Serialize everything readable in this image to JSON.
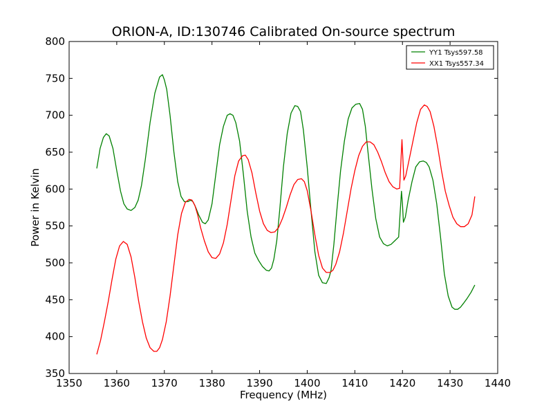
{
  "chart_data": {
    "type": "line",
    "title": "ORION-A, ID:130746 Calibrated On-source spectrum",
    "xlabel": "Frequency (MHz)",
    "ylabel": "Power in Kelvin",
    "xlim": [
      1350,
      1440
    ],
    "ylim": [
      350,
      800
    ],
    "xticks": [
      1350,
      1360,
      1370,
      1380,
      1390,
      1400,
      1410,
      1420,
      1430,
      1440
    ],
    "yticks": [
      350,
      400,
      450,
      500,
      550,
      600,
      650,
      700,
      750,
      800
    ],
    "grid": false,
    "legend_position": "top-right",
    "series": [
      {
        "name": "YY1 Tsys597.58",
        "color": "#008000",
        "x": [
          1355.8,
          1356.5,
          1357.2,
          1357.8,
          1358.4,
          1359.2,
          1360.0,
          1360.8,
          1361.5,
          1362.2,
          1363.0,
          1363.8,
          1364.5,
          1365.2,
          1366.0,
          1367.0,
          1368.0,
          1369.0,
          1369.6,
          1370.0,
          1370.5,
          1371.2,
          1372.0,
          1372.8,
          1373.5,
          1374.2,
          1375.0,
          1375.5,
          1376.0,
          1376.6,
          1377.2,
          1378.0,
          1378.6,
          1379.2,
          1380.0,
          1380.8,
          1381.6,
          1382.4,
          1383.2,
          1383.8,
          1384.4,
          1385.0,
          1385.8,
          1386.6,
          1387.4,
          1388.2,
          1389.0,
          1389.8,
          1390.6,
          1391.4,
          1392.0,
          1392.5,
          1393.0,
          1393.6,
          1394.2,
          1395.0,
          1395.8,
          1396.6,
          1397.4,
          1398.0,
          1398.6,
          1399.2,
          1400.0,
          1400.8,
          1401.6,
          1402.4,
          1403.2,
          1404.0,
          1404.6,
          1405.0,
          1405.6,
          1406.2,
          1407.0,
          1407.8,
          1408.6,
          1409.4,
          1410.2,
          1411.0,
          1411.6,
          1412.2,
          1412.8,
          1413.6,
          1414.4,
          1415.2,
          1416.0,
          1416.8,
          1417.6,
          1418.4,
          1419.2,
          1419.8,
          1420.0,
          1420.2,
          1420.6,
          1421.2,
          1422.0,
          1422.8,
          1423.6,
          1424.4,
          1425.0,
          1425.6,
          1426.4,
          1427.2,
          1428.0,
          1428.8,
          1429.6,
          1430.4,
          1431.0,
          1431.6,
          1432.2,
          1432.8,
          1433.6,
          1434.4,
          1435.2
        ],
        "y": [
          628,
          655,
          670,
          675,
          672,
          655,
          625,
          597,
          580,
          573,
          571,
          575,
          585,
          605,
          640,
          690,
          730,
          752,
          755,
          748,
          735,
          700,
          650,
          610,
          590,
          583,
          583,
          585,
          583,
          575,
          565,
          555,
          553,
          558,
          580,
          620,
          660,
          685,
          700,
          702,
          700,
          690,
          665,
          620,
          570,
          535,
          513,
          503,
          495,
          490,
          489,
          493,
          505,
          530,
          570,
          630,
          675,
          703,
          713,
          712,
          705,
          680,
          630,
          570,
          515,
          483,
          473,
          472,
          480,
          490,
          525,
          570,
          625,
          665,
          695,
          710,
          715,
          716,
          708,
          685,
          648,
          600,
          560,
          535,
          526,
          523,
          525,
          530,
          535,
          597,
          580,
          555,
          562,
          585,
          610,
          630,
          637,
          638,
          636,
          630,
          612,
          580,
          535,
          485,
          455,
          440,
          437,
          437,
          440,
          445,
          452,
          460,
          470
        ]
      },
      {
        "name": "XX1 Tsys557.34",
        "color": "#ff0000",
        "x": [
          1355.8,
          1356.6,
          1357.4,
          1358.2,
          1359.0,
          1359.8,
          1360.6,
          1361.4,
          1362.2,
          1363.0,
          1363.8,
          1364.6,
          1365.4,
          1366.2,
          1367.0,
          1367.8,
          1368.4,
          1369.0,
          1369.6,
          1370.4,
          1371.2,
          1372.0,
          1372.8,
          1373.6,
          1374.4,
          1375.2,
          1375.8,
          1376.4,
          1377.0,
          1377.6,
          1378.4,
          1379.2,
          1380.0,
          1380.8,
          1381.6,
          1382.4,
          1383.2,
          1384.0,
          1384.8,
          1385.6,
          1386.4,
          1387.0,
          1387.6,
          1388.4,
          1389.2,
          1390.0,
          1390.8,
          1391.6,
          1392.4,
          1393.2,
          1394.0,
          1394.8,
          1395.6,
          1396.4,
          1397.2,
          1398.0,
          1398.8,
          1399.4,
          1400.0,
          1400.8,
          1401.6,
          1402.4,
          1403.2,
          1404.0,
          1404.8,
          1405.4,
          1406.0,
          1406.8,
          1407.6,
          1408.4,
          1409.2,
          1410.0,
          1410.8,
          1411.6,
          1412.4,
          1413.2,
          1414.0,
          1414.8,
          1415.6,
          1416.4,
          1417.2,
          1418.0,
          1418.8,
          1419.4,
          1419.9,
          1420.1,
          1420.3,
          1420.7,
          1421.4,
          1422.2,
          1423.0,
          1423.8,
          1424.6,
          1425.2,
          1425.8,
          1426.6,
          1427.4,
          1428.2,
          1429.0,
          1429.8,
          1430.6,
          1431.4,
          1432.2,
          1433.0,
          1433.8,
          1434.6,
          1435.2
        ],
        "y": [
          376,
          395,
          420,
          447,
          477,
          505,
          523,
          529,
          525,
          508,
          480,
          448,
          420,
          398,
          385,
          380,
          380,
          385,
          396,
          420,
          455,
          497,
          538,
          567,
          582,
          586,
          585,
          578,
          565,
          548,
          530,
          515,
          507,
          506,
          512,
          527,
          552,
          585,
          618,
          638,
          645,
          646,
          640,
          622,
          595,
          570,
          553,
          544,
          541,
          542,
          548,
          560,
          575,
          592,
          606,
          613,
          614,
          610,
          598,
          570,
          538,
          510,
          493,
          487,
          487,
          490,
          498,
          515,
          540,
          570,
          600,
          625,
          645,
          658,
          664,
          664,
          660,
          650,
          637,
          622,
          610,
          603,
          600,
          601,
          667,
          640,
          612,
          618,
          640,
          665,
          690,
          708,
          714,
          712,
          705,
          685,
          657,
          625,
          597,
          578,
          562,
          553,
          549,
          549,
          553,
          565,
          590
        ]
      }
    ]
  }
}
